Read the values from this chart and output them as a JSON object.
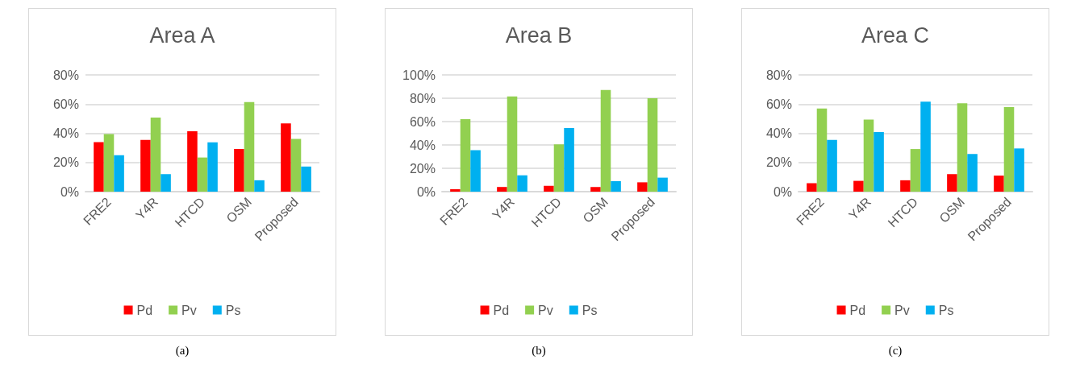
{
  "chart_data": [
    {
      "type": "bar",
      "title": "Area A",
      "categories": [
        "FRE2",
        "Y4R",
        "HTCD",
        "OSM",
        "Proposed"
      ],
      "series": [
        {
          "name": "Pd",
          "color": "#ff0000",
          "values": [
            34,
            35.4,
            41.4,
            29.2,
            46.8
          ]
        },
        {
          "name": "Pv",
          "color": "#92d050",
          "values": [
            39.4,
            50.8,
            23.4,
            61.4,
            36.2
          ]
        },
        {
          "name": "Ps",
          "color": "#00b0f0",
          "values": [
            25,
            12,
            33.8,
            7.8,
            17.2
          ]
        }
      ],
      "ylim": [
        0,
        80
      ],
      "yticks": [
        {
          "value": 0,
          "label": "0%"
        },
        {
          "value": 20,
          "label": "20%"
        },
        {
          "value": 40,
          "label": "40%"
        },
        {
          "value": 60,
          "label": "60%"
        },
        {
          "value": 80,
          "label": "80%"
        }
      ],
      "grid": "y",
      "legend": "bottom",
      "annotations": [
        "(a)"
      ]
    },
    {
      "type": "bar",
      "title": "Area B",
      "categories": [
        "FRE2",
        "Y4R",
        "HTCD",
        "OSM",
        "Proposed"
      ],
      "series": [
        {
          "name": "Pd",
          "color": "#ff0000",
          "values": [
            2,
            4,
            5,
            4,
            8
          ]
        },
        {
          "name": "Pv",
          "color": "#92d050",
          "values": [
            62,
            81.5,
            40.5,
            87,
            80
          ]
        },
        {
          "name": "Ps",
          "color": "#00b0f0",
          "values": [
            35.5,
            14,
            54.5,
            9,
            12
          ]
        }
      ],
      "ylim": [
        0,
        100
      ],
      "yticks": [
        {
          "value": 0,
          "label": "0%"
        },
        {
          "value": 20,
          "label": "20%"
        },
        {
          "value": 40,
          "label": "40%"
        },
        {
          "value": 60,
          "label": "60%"
        },
        {
          "value": 80,
          "label": "80%"
        },
        {
          "value": 100,
          "label": "100%"
        }
      ],
      "grid": "y",
      "legend": "bottom",
      "annotations": [
        "(b)"
      ]
    },
    {
      "type": "bar",
      "title": "Area C",
      "categories": [
        "FRE2",
        "Y4R",
        "HTCD",
        "OSM",
        "Proposed"
      ],
      "series": [
        {
          "name": "Pd",
          "color": "#ff0000",
          "values": [
            5.8,
            7.4,
            7.8,
            12,
            11
          ]
        },
        {
          "name": "Pv",
          "color": "#92d050",
          "values": [
            57,
            49.4,
            29.2,
            60.6,
            58
          ]
        },
        {
          "name": "Ps",
          "color": "#00b0f0",
          "values": [
            35.4,
            40.8,
            61.6,
            25.8,
            29.6
          ]
        }
      ],
      "ylim": [
        0,
        80
      ],
      "yticks": [
        {
          "value": 0,
          "label": "0%"
        },
        {
          "value": 20,
          "label": "20%"
        },
        {
          "value": 40,
          "label": "40%"
        },
        {
          "value": 60,
          "label": "60%"
        },
        {
          "value": 80,
          "label": "80%"
        }
      ],
      "grid": "y",
      "legend": "bottom",
      "annotations": [
        "(c)"
      ]
    }
  ]
}
